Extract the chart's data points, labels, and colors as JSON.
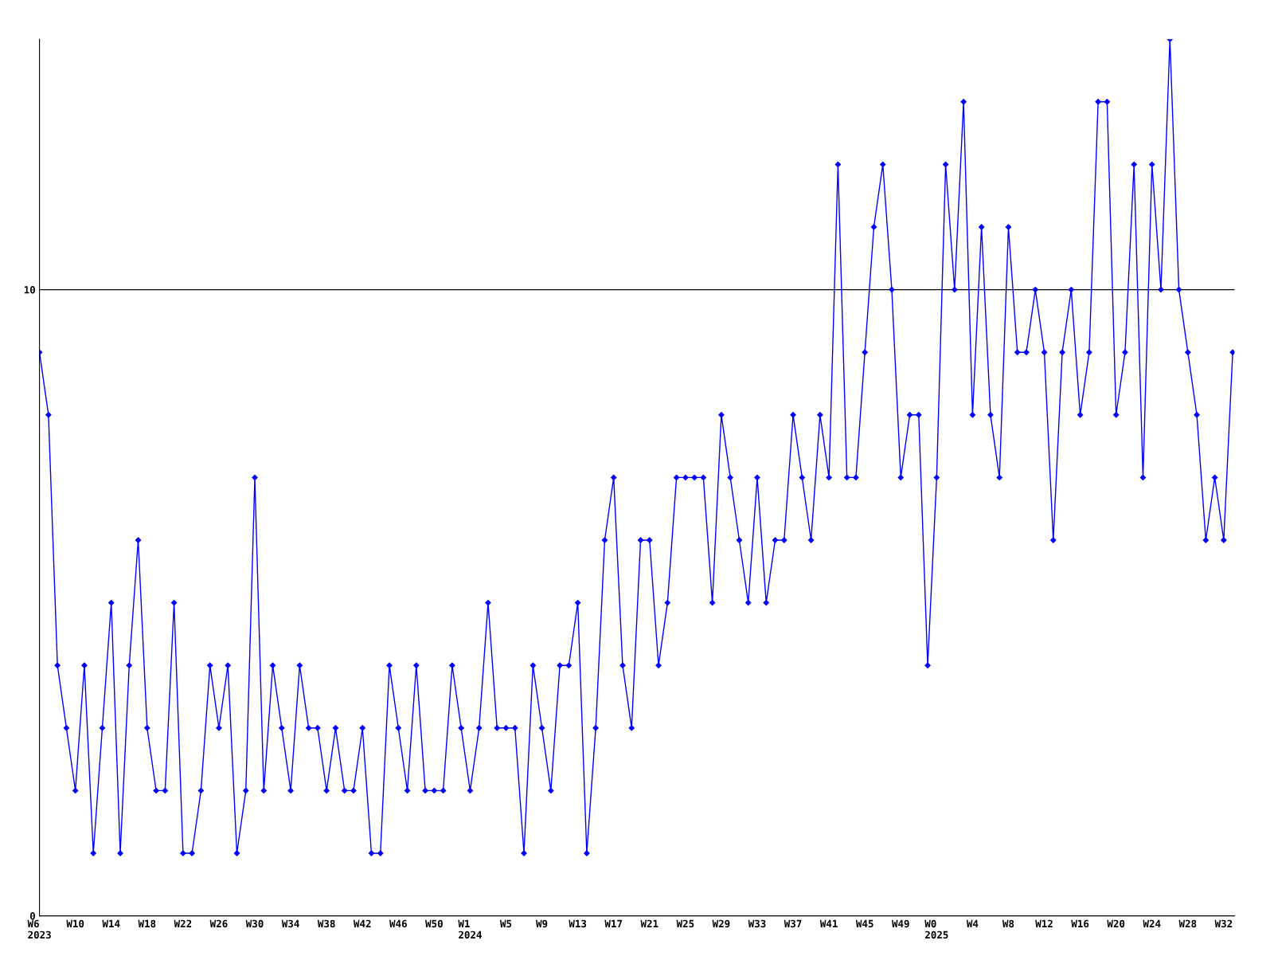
{
  "chart_data": {
    "type": "line",
    "categories": [
      "W6\n2023",
      null,
      null,
      null,
      "W10",
      null,
      null,
      null,
      "W14",
      null,
      null,
      null,
      "W18",
      null,
      null,
      null,
      "W22",
      null,
      null,
      null,
      "W26",
      null,
      null,
      null,
      "W30",
      null,
      null,
      null,
      "W34",
      null,
      null,
      null,
      "W38",
      null,
      null,
      null,
      "W42",
      null,
      null,
      null,
      "W46",
      null,
      null,
      null,
      "W50",
      null,
      null,
      null,
      "W1\n2024",
      null,
      null,
      null,
      "W5",
      null,
      null,
      null,
      "W9",
      null,
      null,
      null,
      "W13",
      null,
      null,
      null,
      "W17",
      null,
      null,
      null,
      "W21",
      null,
      null,
      null,
      "W25",
      null,
      null,
      null,
      "W29",
      null,
      null,
      null,
      "W33",
      null,
      null,
      null,
      "W37",
      null,
      null,
      null,
      "W41",
      null,
      null,
      null,
      "W45",
      null,
      null,
      null,
      "W49",
      null,
      null,
      null,
      "W0\n2025",
      null,
      null,
      null,
      "W4",
      null,
      null,
      null,
      "W8",
      null,
      null,
      null,
      "W12",
      null,
      null,
      null,
      "W16",
      null,
      null,
      null,
      "W20",
      null,
      null,
      null,
      "W24",
      null,
      null,
      null,
      "W28",
      null,
      null,
      null,
      "W32",
      null
    ],
    "series": [
      {
        "color": "#0000ff",
        "values": [
          9,
          8,
          4,
          3,
          2,
          4,
          1,
          3,
          5,
          1,
          4,
          6,
          3,
          2,
          2,
          5,
          1,
          1,
          2,
          4,
          3,
          4,
          1,
          2,
          7,
          2,
          4,
          3,
          2,
          4,
          3,
          3,
          2,
          3,
          2,
          2,
          3,
          1,
          1,
          4,
          3,
          2,
          4,
          2,
          2,
          2,
          4,
          3,
          2,
          3,
          5,
          3,
          3,
          3,
          1,
          4,
          3,
          2,
          4,
          4,
          5,
          1,
          3,
          6,
          7,
          4,
          3,
          6,
          6,
          4,
          5,
          7,
          7,
          7,
          7,
          5,
          8,
          7,
          6,
          5,
          7,
          5,
          6,
          6,
          8,
          7,
          6,
          8,
          7,
          12,
          7,
          7,
          9,
          11,
          12,
          10,
          7,
          8,
          8,
          4,
          7,
          12,
          10,
          13,
          8,
          11,
          8,
          7,
          11,
          9,
          9,
          10,
          9,
          6,
          9,
          10,
          8,
          9,
          13,
          13,
          8,
          9,
          12,
          7,
          12,
          10,
          14,
          10,
          9,
          8,
          6,
          7,
          6,
          9
        ]
      }
    ],
    "ylim": [
      0,
      14
    ],
    "yticks": [
      0,
      10
    ],
    "grid": "y",
    "marker": "diamond",
    "line_style": "solid"
  }
}
